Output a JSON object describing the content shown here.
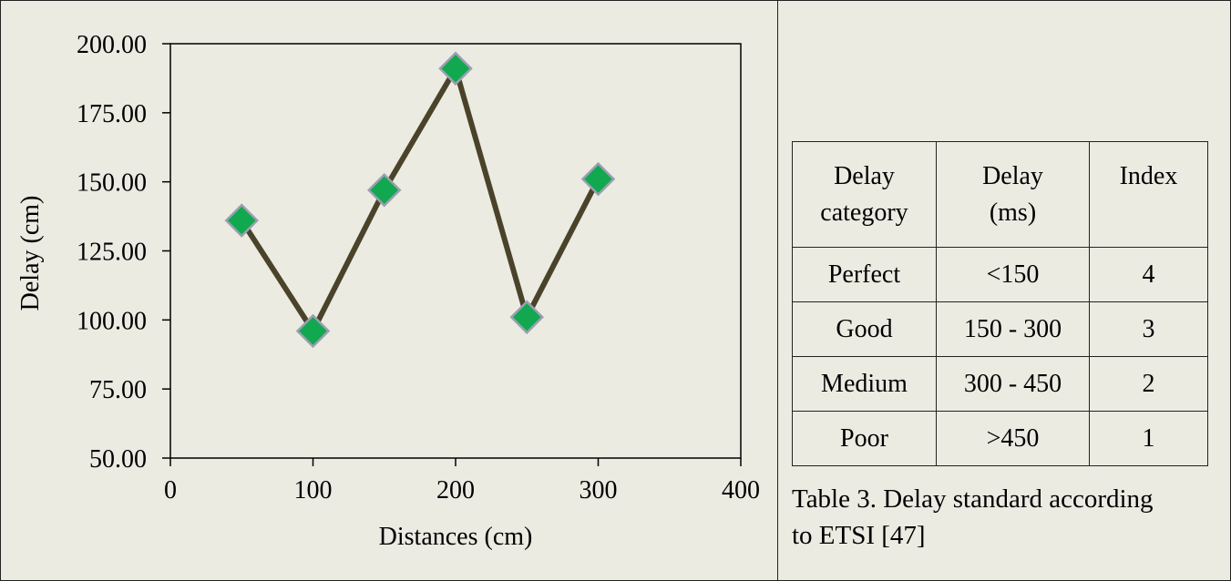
{
  "chart_data": {
    "type": "line",
    "x": [
      50,
      100,
      150,
      200,
      250,
      300
    ],
    "values": [
      136,
      96,
      147,
      191,
      101,
      151
    ],
    "xlabel": "Distances (cm)",
    "ylabel": "Delay (cm)",
    "xlim": [
      0,
      400
    ],
    "ylim": [
      50,
      200
    ],
    "xticks": [
      0,
      100,
      200,
      300,
      400
    ],
    "yticks": [
      "50.00",
      "75.00",
      "100.00",
      "125.00",
      "150.00",
      "175.00",
      "200.00"
    ],
    "grid": false,
    "line_color": "#4A432A",
    "marker_color": "#12A84F",
    "marker_edge_color": "#9AA0B0",
    "marker": "diamond"
  },
  "table": {
    "headers": [
      [
        "Delay",
        "category"
      ],
      [
        "Delay",
        "(ms)"
      ],
      [
        "Index"
      ]
    ],
    "rows": [
      [
        "Perfect",
        "<150",
        "4"
      ],
      [
        "Good",
        "150 - 300",
        "3"
      ],
      [
        "Medium",
        "300 - 450",
        "2"
      ],
      [
        "Poor",
        ">450",
        "1"
      ]
    ],
    "caption_line1": "Table 3. Delay standard according",
    "caption_line2": "to ETSI [47]"
  }
}
